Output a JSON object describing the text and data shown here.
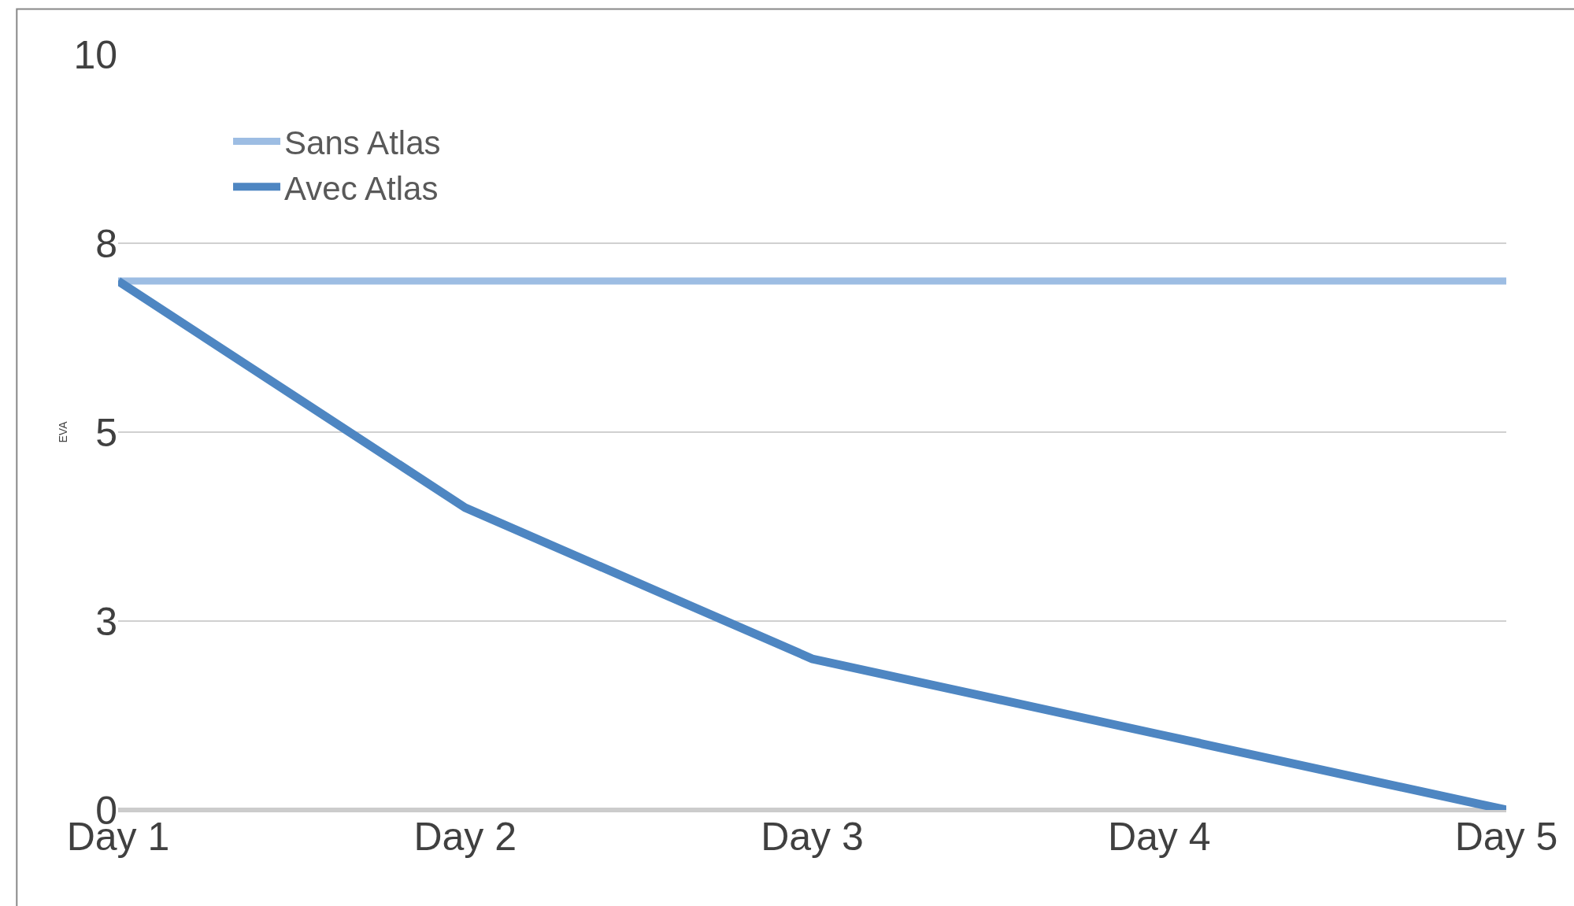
{
  "chart_data": {
    "type": "line",
    "ylabel": "EVA",
    "categories": [
      "Day 1",
      "Day 2",
      "Day 3",
      "Day 4",
      "Day 5"
    ],
    "series": [
      {
        "name": "Sans Atlas",
        "color": "#9dbde3",
        "values": [
          7,
          7,
          7,
          7,
          7
        ]
      },
      {
        "name": "Avec Atlas",
        "color": "#4e86c2",
        "values": [
          7,
          4,
          2,
          1,
          0
        ]
      }
    ],
    "ylim": [
      0,
      10
    ],
    "yticks": [
      0,
      {
        "value": 2.5,
        "label": "3"
      },
      5,
      {
        "value": 7.5,
        "label": "8"
      },
      10
    ],
    "grid": "y",
    "legend": "top left",
    "marker": "none",
    "line_style": "solid"
  }
}
